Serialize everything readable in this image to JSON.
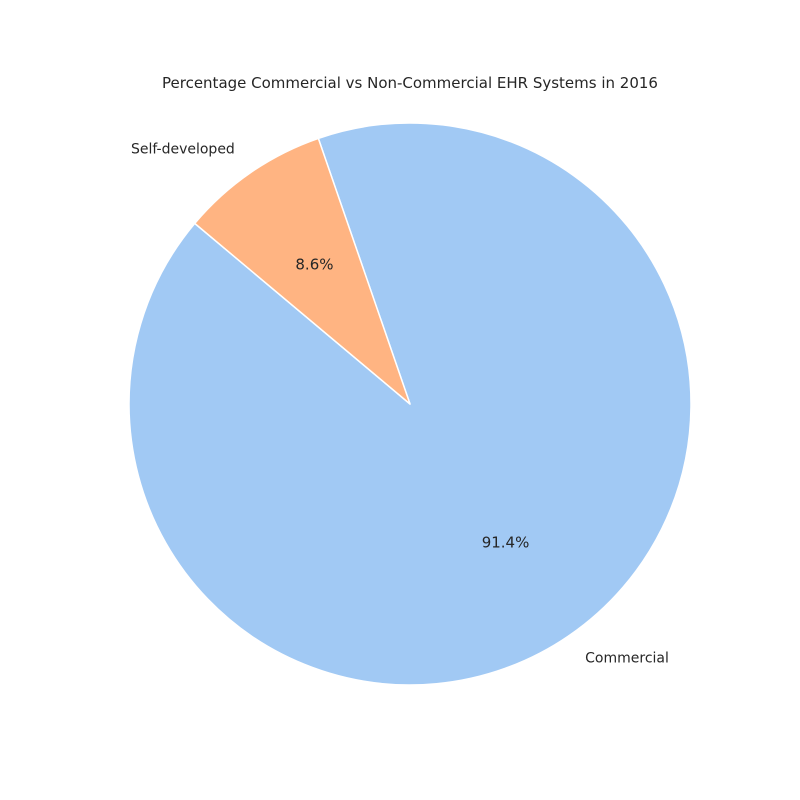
{
  "chart_data": {
    "type": "pie",
    "title": "Percentage Commercial vs Non-Commercial EHR Systems in 2016",
    "slices": [
      {
        "label": "Commercial",
        "value": 91.4,
        "pct_label": "91.4%",
        "color": "#a1c9f4"
      },
      {
        "label": "Self-developed",
        "value": 8.6,
        "pct_label": "8.6%",
        "color": "#ffb482"
      }
    ],
    "start_angle_deg": 140,
    "direction": "counterclockwise",
    "wedge_edge_color": "#ffffff"
  }
}
